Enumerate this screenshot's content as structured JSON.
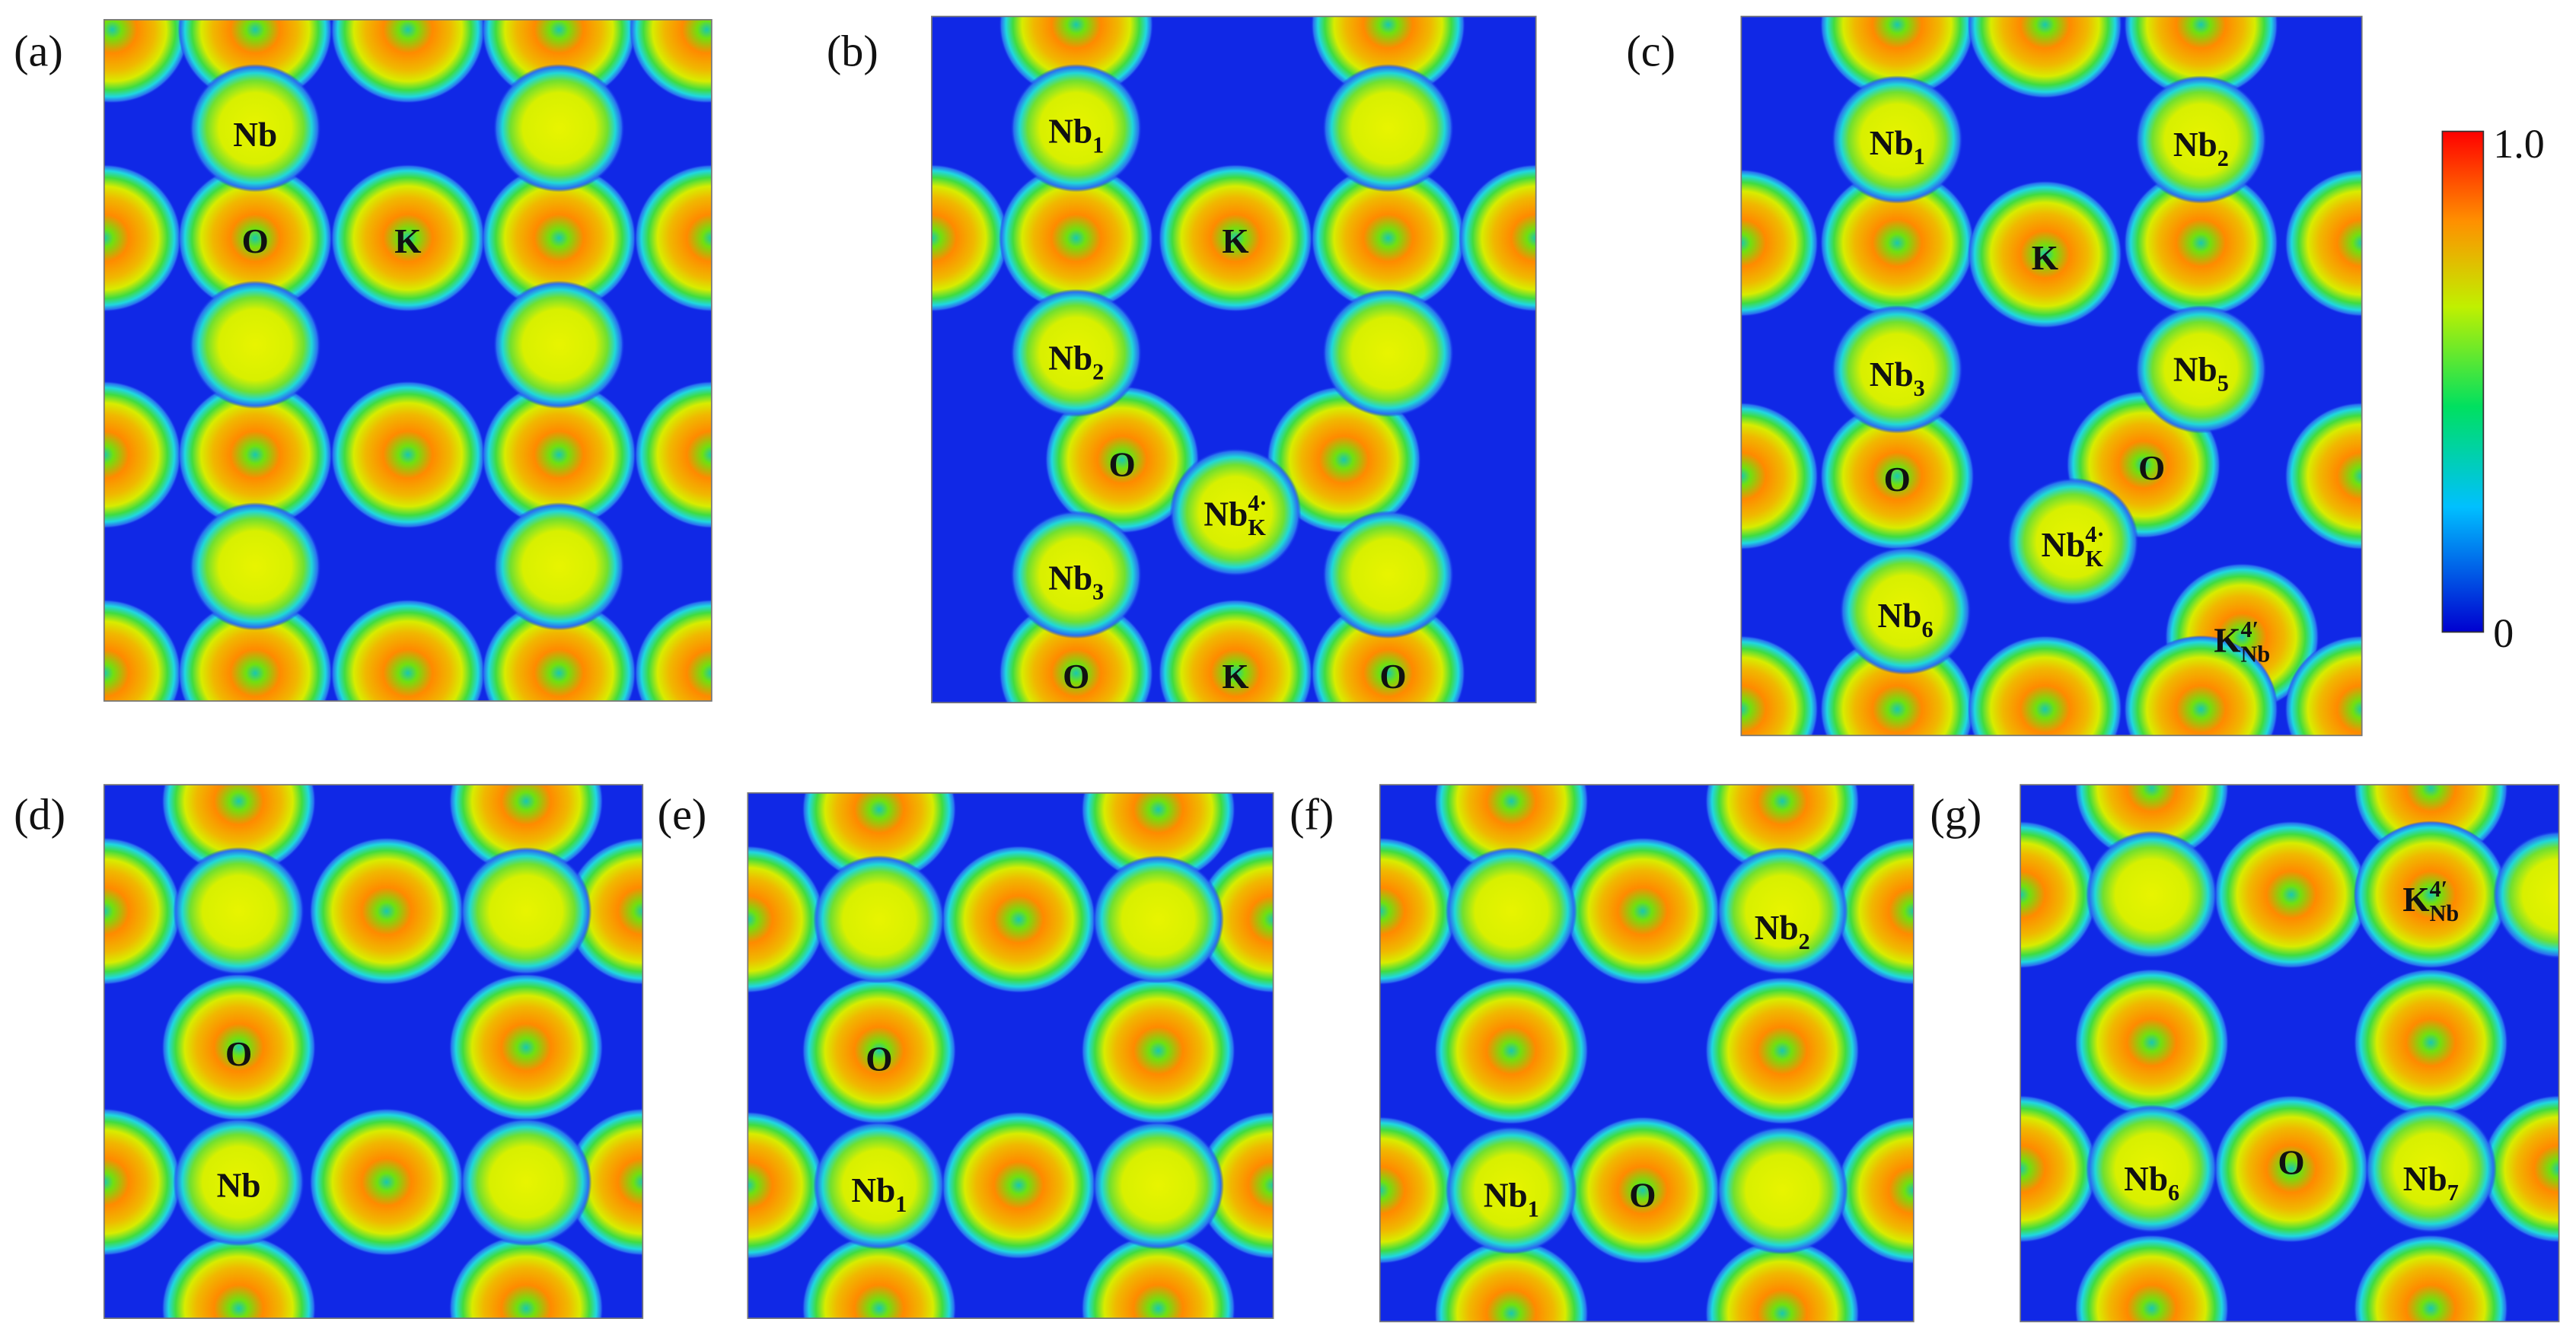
{
  "panels": [
    {
      "label": "(a)",
      "atoms": [
        {
          "base": "Nb"
        },
        {
          "base": "O"
        },
        {
          "base": "K"
        }
      ]
    },
    {
      "label": "(b)",
      "atoms": [
        {
          "base": "Nb",
          "sub": "1"
        },
        {
          "base": "K"
        },
        {
          "base": "Nb",
          "sub": "2"
        },
        {
          "base": "O"
        },
        {
          "base": "Nb",
          "sub": "K",
          "sup": "4·"
        },
        {
          "base": "Nb",
          "sub": "3"
        },
        {
          "base": "O"
        },
        {
          "base": "K"
        },
        {
          "base": "O"
        }
      ]
    },
    {
      "label": "(c)",
      "atoms": [
        {
          "base": "Nb",
          "sub": "1"
        },
        {
          "base": "Nb",
          "sub": "2"
        },
        {
          "base": "K"
        },
        {
          "base": "Nb",
          "sub": "3"
        },
        {
          "base": "Nb",
          "sub": "5"
        },
        {
          "base": "O"
        },
        {
          "base": "O"
        },
        {
          "base": "Nb",
          "sub": "K",
          "sup": "4·"
        },
        {
          "base": "Nb",
          "sub": "6"
        },
        {
          "base": "K",
          "sub": "Nb",
          "sup": "4′"
        }
      ]
    },
    {
      "label": "(d)",
      "atoms": [
        {
          "base": "O"
        },
        {
          "base": "Nb"
        }
      ]
    },
    {
      "label": "(e)",
      "atoms": [
        {
          "base": "O"
        },
        {
          "base": "Nb",
          "sub": "1"
        }
      ]
    },
    {
      "label": "(f)",
      "atoms": [
        {
          "base": "Nb",
          "sub": "2"
        },
        {
          "base": "Nb",
          "sub": "1"
        },
        {
          "base": "O"
        }
      ]
    },
    {
      "label": "(g)",
      "atoms": [
        {
          "base": "K",
          "sub": "Nb",
          "sup": "4′"
        },
        {
          "base": "Nb",
          "sub": "6"
        },
        {
          "base": "O"
        },
        {
          "base": "Nb",
          "sub": "7"
        }
      ]
    }
  ],
  "colorbar": {
    "max": "1.0",
    "min": "0"
  }
}
